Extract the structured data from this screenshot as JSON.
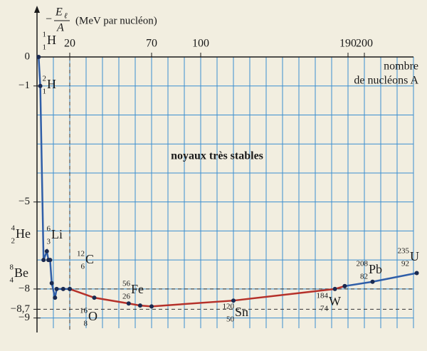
{
  "chart_data": {
    "type": "line",
    "ylabel": {
      "sign": "−",
      "numerator": "E",
      "subscript": "ℓ",
      "denominator": "A",
      "unit": "(MeV par nucléon)"
    },
    "xlabel": [
      "nombre",
      "de nucléons A"
    ],
    "annotation": "noyaux très stables",
    "xlim": [
      0,
      230
    ],
    "ylim": [
      -9.5,
      0
    ],
    "xticks": [
      20,
      70,
      100,
      190,
      200
    ],
    "yticks": [
      0,
      {
        "value": -1,
        "label": "−1"
      },
      {
        "value": -5,
        "label": "−5"
      },
      {
        "value": -8,
        "label": "−8"
      },
      {
        "value": -8.7,
        "label": "−8,7"
      },
      {
        "value": -9,
        "label": "−9"
      }
    ],
    "grid": {
      "x_step": 10,
      "y_step": 1,
      "color": "#3a8ed0"
    },
    "dashed_x": [
      20
    ],
    "dashed_y": [
      -8,
      -8.7
    ],
    "series": [
      {
        "color": "#2f5ea8",
        "x": [
          1,
          2,
          4,
          6,
          7,
          8,
          9,
          11,
          12,
          16,
          20
        ],
        "values": [
          0,
          -1.0,
          -7.0,
          -6.7,
          -7.0,
          -7.0,
          -7.8,
          -8.3,
          -8.0,
          -8.0,
          -8.0
        ]
      },
      {
        "color": "#b5312a",
        "x": [
          20,
          35,
          56,
          63,
          70,
          120,
          182,
          188
        ],
        "values": [
          -8.0,
          -8.3,
          -8.5,
          -8.57,
          -8.6,
          -8.4,
          -8.0,
          -7.9
        ]
      },
      {
        "color": "#2f5ea8",
        "x": [
          188,
          205,
          232
        ],
        "values": [
          -7.9,
          -7.75,
          -7.45
        ]
      }
    ],
    "nuclides": [
      {
        "mass": "1",
        "z": "1",
        "symbol": "H"
      },
      {
        "mass": "2",
        "z": "1",
        "symbol": "H"
      },
      {
        "mass": "4",
        "z": "2",
        "symbol": "He"
      },
      {
        "mass": "6",
        "z": "3",
        "symbol": "Li"
      },
      {
        "mass": "8",
        "z": "4",
        "symbol": "Be"
      },
      {
        "mass": "12",
        "z": "6",
        "symbol": "C"
      },
      {
        "mass": "16",
        "z": "8",
        "symbol": "O"
      },
      {
        "mass": "56",
        "z": "26",
        "symbol": "Fe"
      },
      {
        "mass": "120",
        "z": "50",
        "symbol": "Sn"
      },
      {
        "mass": "184",
        "z": "74",
        "symbol": "W"
      },
      {
        "mass": "208",
        "z": "82",
        "symbol": "Pb"
      },
      {
        "mass": "235",
        "z": "92",
        "symbol": "U"
      }
    ]
  }
}
